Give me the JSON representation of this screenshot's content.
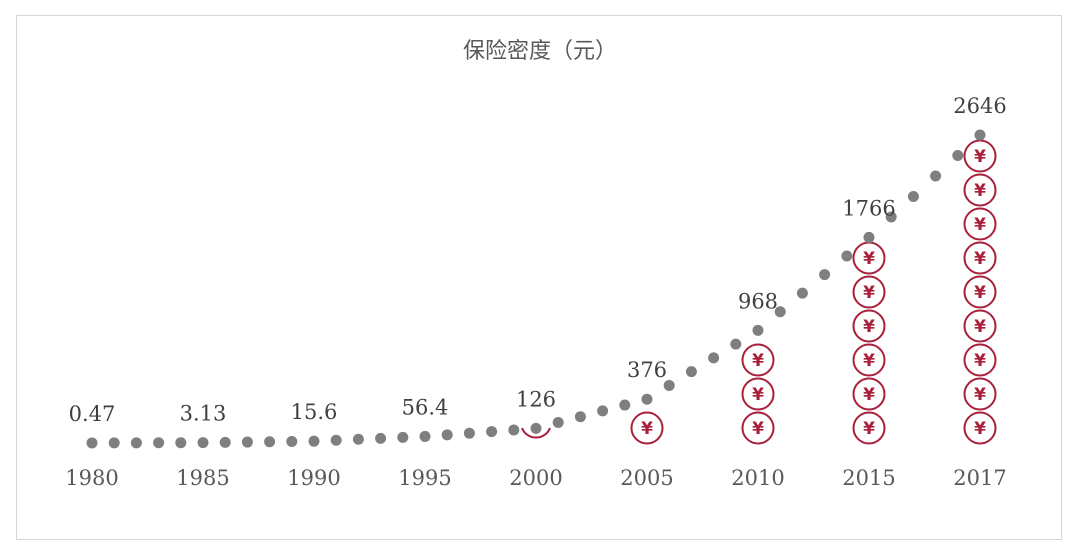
{
  "chart_data": {
    "type": "line",
    "title": "保险密度（元）",
    "x": [
      "1980",
      "1985",
      "1990",
      "1995",
      "2000",
      "2005",
      "2010",
      "2015",
      "2017"
    ],
    "values": [
      0.47,
      3.13,
      15.6,
      56.4,
      126,
      376,
      968,
      1766,
      2646
    ],
    "data_labels": [
      "0.47",
      "3.13",
      "15.6",
      "56.4",
      "126",
      "376",
      "968",
      "1766",
      "2646"
    ],
    "series_style": "dotted",
    "coin_symbol": "¥",
    "coin_counts": [
      0,
      0,
      0,
      0,
      0.5,
      1,
      3,
      6,
      9
    ],
    "grid": false,
    "legend": "none",
    "colors": {
      "line": "#7f7f7f",
      "coin": "#a8203a",
      "text": "#404040",
      "axis_text": "#595959"
    }
  }
}
